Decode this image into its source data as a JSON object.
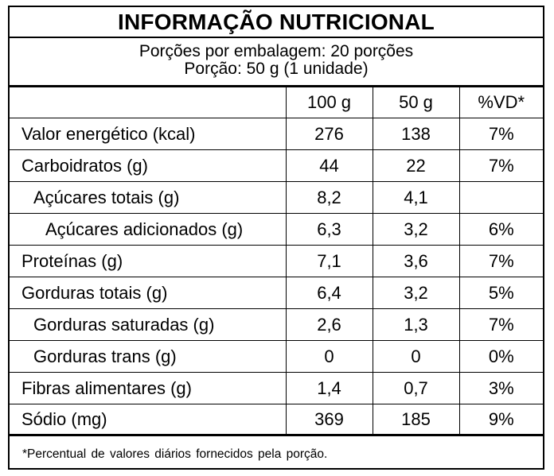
{
  "title": "INFORMAÇÃO NUTRICIONAL",
  "portions": {
    "per_package": "Porções por embalagem: 20 porções",
    "portion": "Porção: 50 g (1 unidade)"
  },
  "table": {
    "headers": [
      "",
      "100 g",
      "50 g",
      "%VD*"
    ],
    "rows": [
      {
        "name": "Valor energético (kcal)",
        "indent": 0,
        "per100": "276",
        "per50": "138",
        "vd": "7%"
      },
      {
        "name": "Carboidratos (g)",
        "indent": 0,
        "per100": "44",
        "per50": "22",
        "vd": "7%"
      },
      {
        "name": "Açúcares totais (g)",
        "indent": 1,
        "per100": "8,2",
        "per50": "4,1",
        "vd": ""
      },
      {
        "name": "Açúcares adicionados (g)",
        "indent": 2,
        "per100": "6,3",
        "per50": "3,2",
        "vd": "6%"
      },
      {
        "name": "Proteínas (g)",
        "indent": 0,
        "per100": "7,1",
        "per50": "3,6",
        "vd": "7%"
      },
      {
        "name": "Gorduras totais (g)",
        "indent": 0,
        "per100": "6,4",
        "per50": "3,2",
        "vd": "5%"
      },
      {
        "name": "Gorduras saturadas (g)",
        "indent": 1,
        "per100": "2,6",
        "per50": "1,3",
        "vd": "7%"
      },
      {
        "name": "Gorduras trans (g)",
        "indent": 1,
        "per100": "0",
        "per50": "0",
        "vd": "0%"
      },
      {
        "name": "Fibras alimentares (g)",
        "indent": 0,
        "per100": "1,4",
        "per50": "0,7",
        "vd": "3%"
      },
      {
        "name": "Sódio (mg)",
        "indent": 0,
        "per100": "369",
        "per50": "185",
        "vd": "9%"
      }
    ]
  },
  "footnote": "*Percentual de valores diários fornecidos pela porção."
}
